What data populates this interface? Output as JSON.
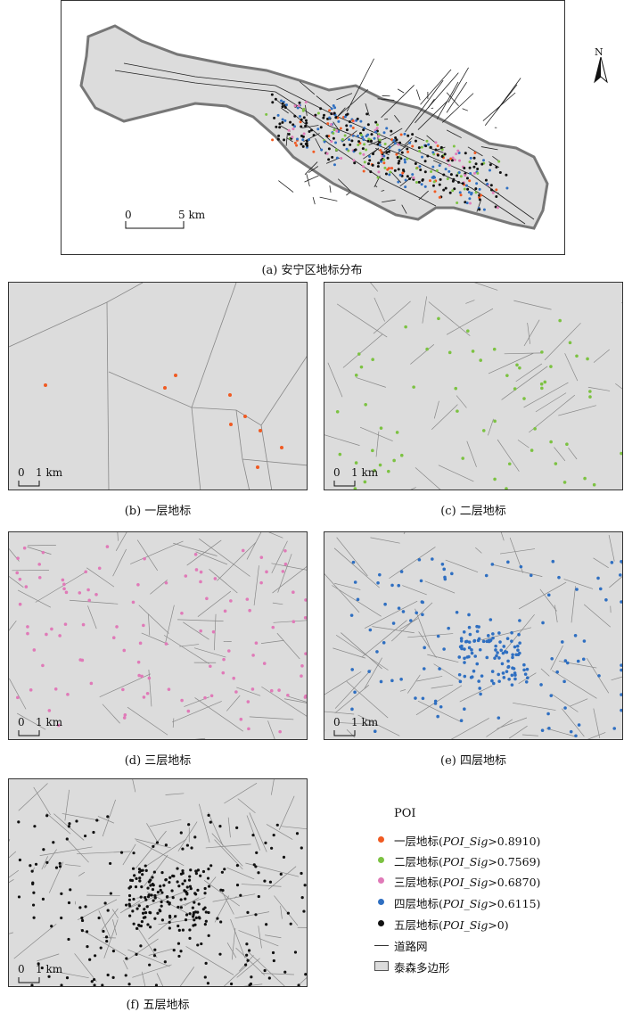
{
  "panels": [
    {
      "id": "a",
      "caption": "(a) 安宁区地标分布",
      "scale_zero": "0",
      "scale_label": "5 km"
    },
    {
      "id": "b",
      "caption": "(b) 一层地标",
      "scale_zero": "0",
      "scale_label": "1 km",
      "color": "#f05a22"
    },
    {
      "id": "c",
      "caption": "(c) 二层地标",
      "scale_zero": "0",
      "scale_label": "1 km",
      "color": "#7cc242"
    },
    {
      "id": "d",
      "caption": "(d) 三层地标",
      "scale_zero": "0",
      "scale_label": "1 km",
      "color": "#e07ab8"
    },
    {
      "id": "e",
      "caption": "(e) 四层地标",
      "scale_zero": "0",
      "scale_label": "1 km",
      "color": "#2f6fc1"
    },
    {
      "id": "f",
      "caption": "(f) 五层地标",
      "scale_zero": "0",
      "scale_label": "1 km",
      "color": "#111111"
    }
  ],
  "north_label": "N",
  "legend": {
    "title": "POI",
    "items": [
      {
        "name": "一层地标",
        "sig": "POI_Sig",
        "cond": ">0.8910",
        "color": "#f05a22"
      },
      {
        "name": "二层地标",
        "sig": "POI_Sig",
        "cond": ">0.7569",
        "color": "#7cc242"
      },
      {
        "name": "三层地标",
        "sig": "POI_Sig",
        "cond": ">0.6870",
        "color": "#e07ab8"
      },
      {
        "name": "四层地标",
        "sig": "POI_Sig",
        "cond": ">0.6115",
        "color": "#2f6fc1"
      },
      {
        "name": "五层地标",
        "sig": "POI_Sig",
        "cond": ">0",
        "color": "#111111"
      }
    ],
    "road_label": "道路网",
    "polygon_label": "泰森多边形"
  }
}
